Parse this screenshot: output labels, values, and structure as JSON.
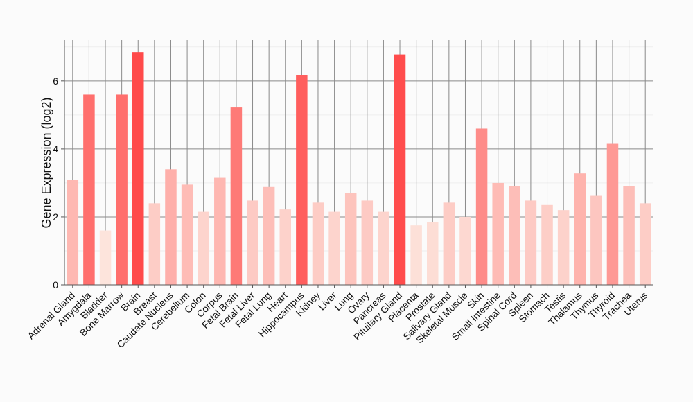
{
  "chart_data": {
    "type": "bar",
    "ylabel": "Gene Expression (log2)",
    "ylim": [
      0,
      7.2
    ],
    "yticks": [
      0,
      2,
      4,
      6
    ],
    "grid": true,
    "bar_color_scale": {
      "low": "#fde4dc",
      "high": "#ff4a4a"
    },
    "categories": [
      "Adrenal Gland",
      "Amygdala",
      "Bladder",
      "Bone Marrow",
      "Brain",
      "Breast",
      "Caudate Nucleus",
      "Cerebellum",
      "Colon",
      "Corpus",
      "Fetal Brain",
      "Fetal Liver",
      "Fetal Lung",
      "Heart",
      "Hippocampus",
      "Kidney",
      "Liver",
      "Lung",
      "Ovary",
      "Pancreas",
      "Pituitary Gland",
      "Placenta",
      "Prostate",
      "Salivary Gland",
      "Skeletal Muscle",
      "Skin",
      "Small Intestine",
      "Spinal Cord",
      "Spleen",
      "Stomach",
      "Testis",
      "Thalamus",
      "Thymus",
      "Thyroid",
      "Trachea",
      "Uterus"
    ],
    "values": [
      3.1,
      5.6,
      1.6,
      5.6,
      6.85,
      2.4,
      3.4,
      2.95,
      2.15,
      3.15,
      5.22,
      2.48,
      2.88,
      2.22,
      6.18,
      2.42,
      2.15,
      2.7,
      2.48,
      2.15,
      6.78,
      1.75,
      1.85,
      2.42,
      2.0,
      4.6,
      3.0,
      2.9,
      2.48,
      2.35,
      2.2,
      3.28,
      2.62,
      4.15,
      2.9,
      2.4
    ]
  }
}
